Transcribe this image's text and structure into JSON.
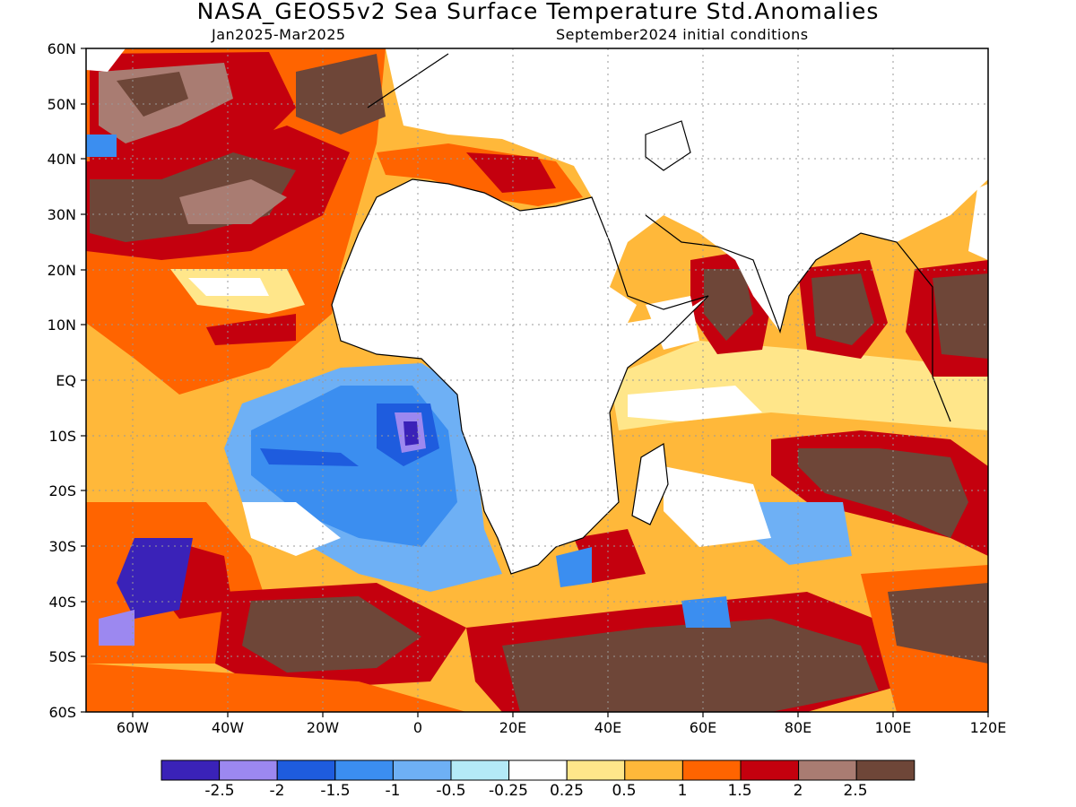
{
  "title": "NASA_GEOS5v2 Sea Surface Temperature Std.Anomalies",
  "subtitle_left": "Jan2025-Mar2025",
  "subtitle_right": "September2024 initial conditions",
  "lat_labels": [
    "60N",
    "50N",
    "40N",
    "30N",
    "20N",
    "10N",
    "EQ",
    "10S",
    "20S",
    "30S",
    "40S",
    "50S",
    "60S"
  ],
  "lon_labels": [
    "60W",
    "40W",
    "20W",
    "0",
    "20E",
    "40E",
    "60E",
    "80E",
    "100E",
    "120E"
  ],
  "colorbar": {
    "colors": [
      "#3a22b8",
      "#9c88f0",
      "#1e5cde",
      "#3b8ef0",
      "#6eb0f5",
      "#b4eaf7",
      "#ffffff",
      "#ffe68a",
      "#ffb83a",
      "#ff6400",
      "#c4000e",
      "#a97c72",
      "#6e4638"
    ],
    "labels": [
      "-2.5",
      "-2",
      "-1.5",
      "-1",
      "-0.5",
      "-0.25",
      "0.25",
      "0.5",
      "1",
      "1.5",
      "2",
      "2.5"
    ]
  }
}
